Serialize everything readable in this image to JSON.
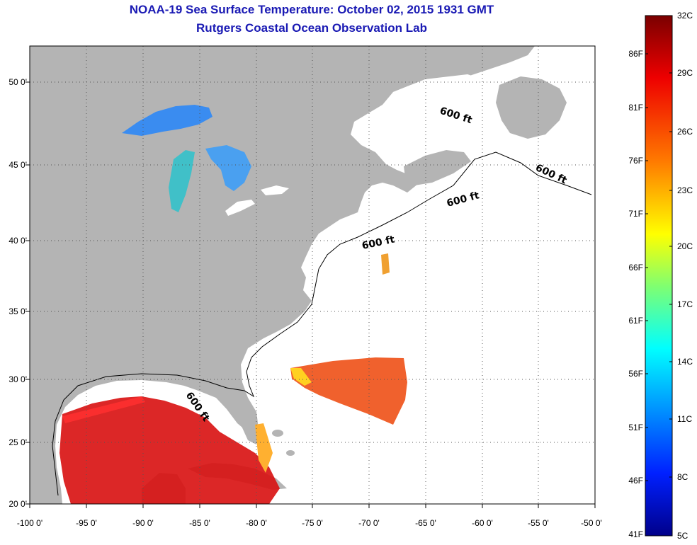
{
  "title": {
    "line1": "NOAA-19 Sea Surface Temperature:  October 02, 2015 1931 GMT",
    "line2": "Rutgers Coastal Ocean Observation Lab"
  },
  "map": {
    "lon_range": [
      -100,
      -50
    ],
    "lat_range": [
      20,
      52
    ],
    "lat_ticks": [
      {
        "value": 20,
        "label": "20 0'"
      },
      {
        "value": 25,
        "label": "25 0'"
      },
      {
        "value": 30,
        "label": "30 0'"
      },
      {
        "value": 35,
        "label": "35 0'"
      },
      {
        "value": 40,
        "label": "40 0'"
      },
      {
        "value": 45,
        "label": "45 0'"
      },
      {
        "value": 50,
        "label": "50 0'"
      }
    ],
    "lon_ticks": [
      {
        "value": -100,
        "label": "-100 0'"
      },
      {
        "value": -95,
        "label": "-95 0'"
      },
      {
        "value": -90,
        "label": "-90 0'"
      },
      {
        "value": -85,
        "label": "-85 0'"
      },
      {
        "value": -80,
        "label": "-80 0'"
      },
      {
        "value": -75,
        "label": "-75 0'"
      },
      {
        "value": -70,
        "label": "-70 0'"
      },
      {
        "value": -65,
        "label": "-65 0'"
      },
      {
        "value": -60,
        "label": "-60 0'"
      },
      {
        "value": -55,
        "label": "-55 0'"
      },
      {
        "value": -50,
        "label": "-50 0'"
      }
    ],
    "isobath_labels": [
      "600 ft",
      "600 ft",
      "600 ft",
      "600 ft",
      "600 ft"
    ],
    "colors": {
      "land": "#b4b4b4",
      "ocean": "#ffffff",
      "warm_gulf": "#d81010",
      "warm_atlantic": "#ee5016",
      "lake_superior": "#3a8cf0",
      "lake_michigan": "#40c0c8"
    }
  },
  "colorbar": {
    "fahrenheit": [
      "86F",
      "81F",
      "76F",
      "71F",
      "66F",
      "61F",
      "56F",
      "51F",
      "46F",
      "41F"
    ],
    "celsius": [
      "32C",
      "29C",
      "26C",
      "23C",
      "20C",
      "17C",
      "14C",
      "11C",
      "8C",
      "5C"
    ],
    "stops": [
      "#800000",
      "#ff0000",
      "#ff8000",
      "#ffff00",
      "#80ff80",
      "#00ffff",
      "#0080ff",
      "#0000ff",
      "#000080"
    ]
  }
}
